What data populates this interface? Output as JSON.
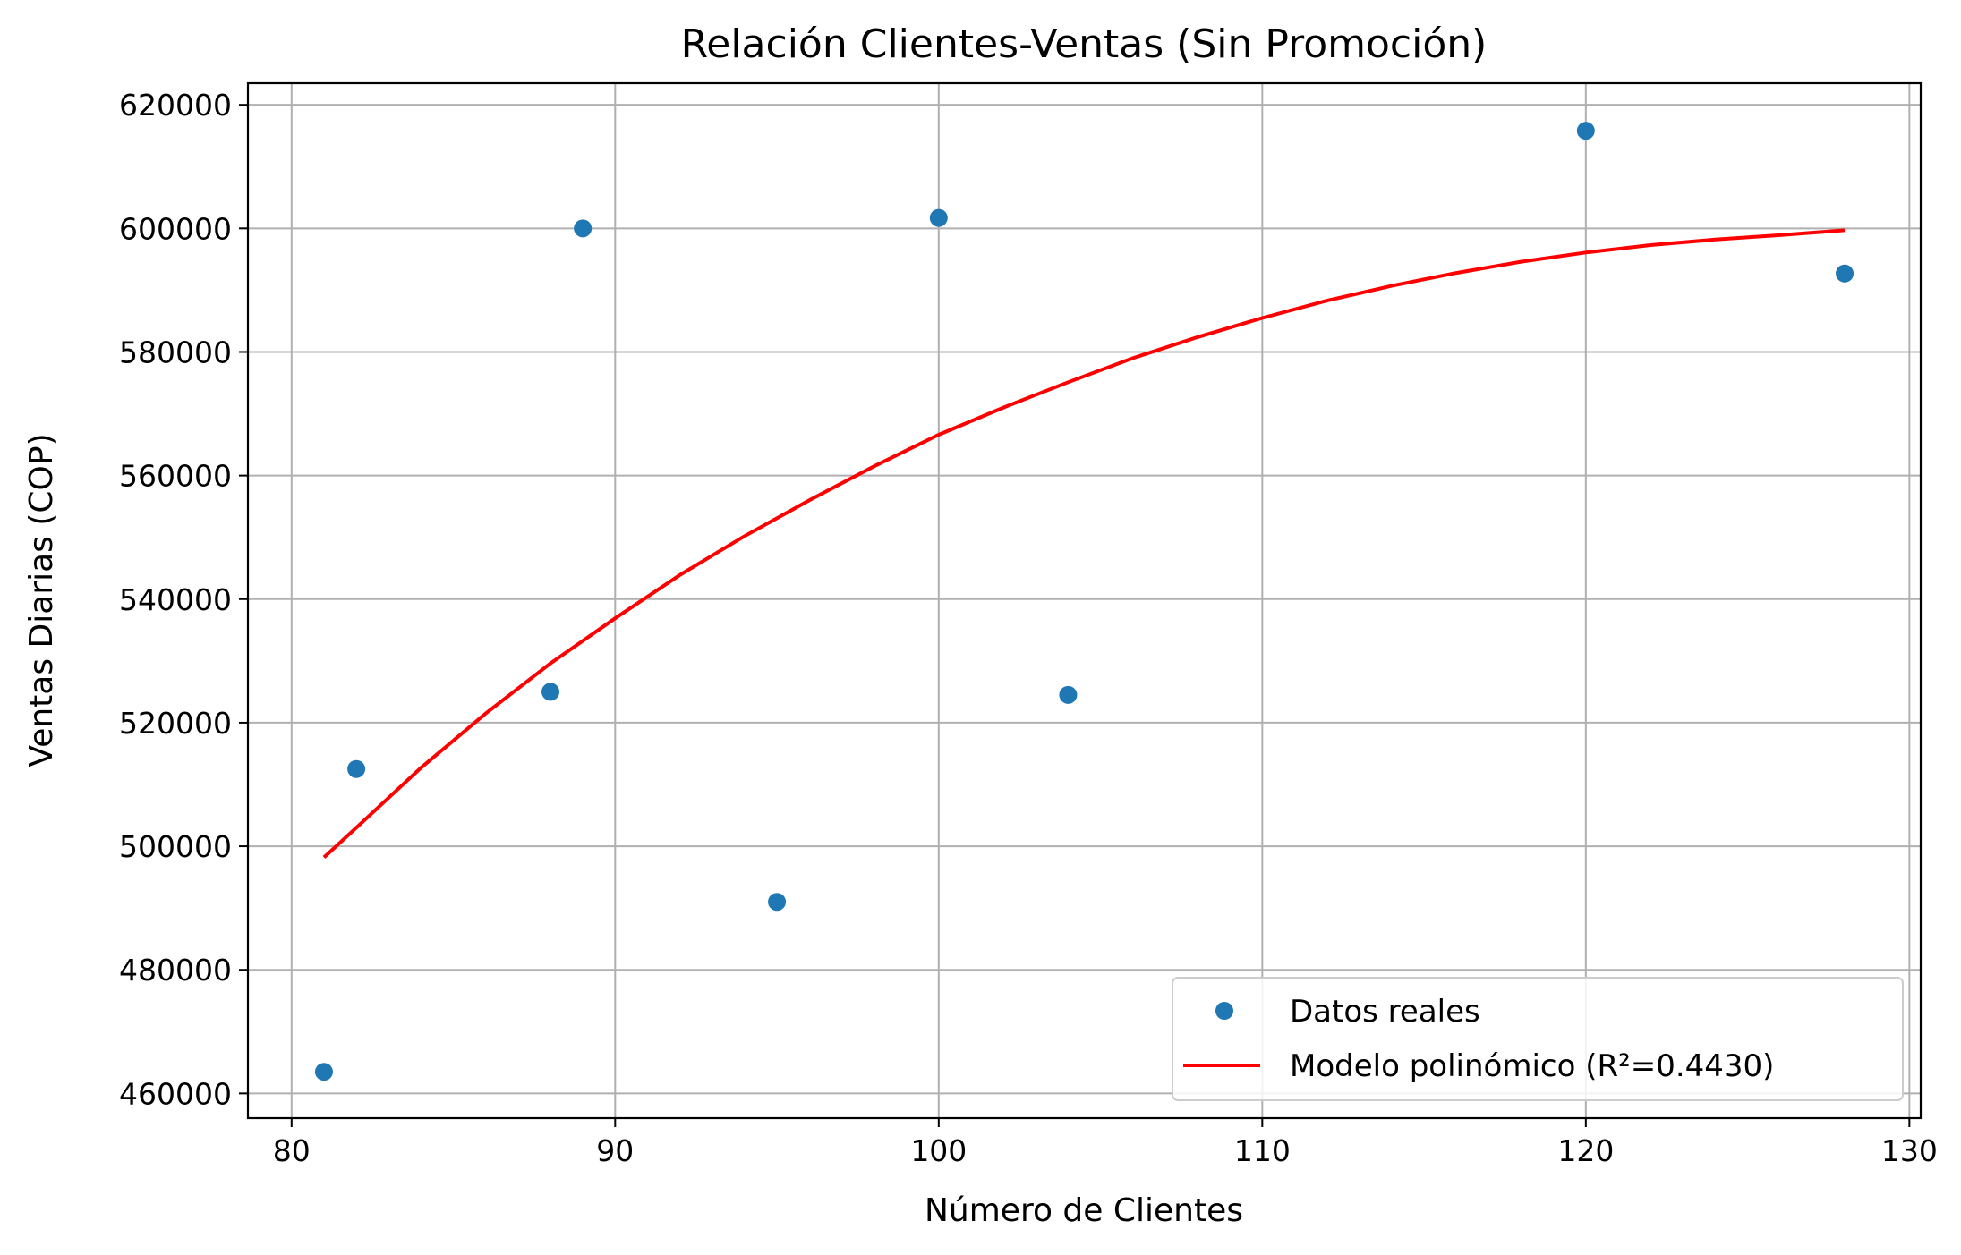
{
  "chart_data": {
    "type": "scatter",
    "title": "Relación Clientes-Ventas (Sin Promoción)",
    "xlabel": "Número de Clientes",
    "ylabel": "Ventas Diarias (COP)",
    "xlim": [
      78.65,
      130.35
    ],
    "ylim": [
      456000,
      623500
    ],
    "xticks": [
      80,
      90,
      100,
      110,
      120,
      130
    ],
    "xtick_labels": [
      "80",
      "90",
      "100",
      "110",
      "120",
      "130"
    ],
    "yticks": [
      460000,
      480000,
      500000,
      520000,
      540000,
      560000,
      580000,
      600000,
      620000
    ],
    "ytick_labels": [
      "460000",
      "480000",
      "500000",
      "520000",
      "540000",
      "560000",
      "580000",
      "600000",
      "620000"
    ],
    "grid": true,
    "legend_position": "lower right",
    "series": [
      {
        "name": "Datos reales",
        "kind": "scatter",
        "color": "#1f77b4",
        "x": [
          81,
          82,
          88,
          89,
          95,
          100,
          104,
          120,
          128
        ],
        "y": [
          463500,
          512500,
          525000,
          600000,
          491000,
          601700,
          524500,
          615800,
          592700
        ]
      },
      {
        "name": "Modelo polinómico (R²=0.4430)",
        "kind": "line",
        "color": "#ff0000",
        "x": [
          81,
          82,
          84,
          86,
          88,
          90,
          92,
          94,
          96,
          98,
          100,
          102,
          104,
          106,
          108,
          110,
          112,
          114,
          116,
          118,
          120,
          122,
          124,
          126,
          128
        ],
        "y": [
          498200,
          503000,
          512700,
          521500,
          529600,
          536900,
          543900,
          550200,
          556000,
          561500,
          566600,
          571000,
          575100,
          579000,
          582400,
          585500,
          588300,
          590700,
          592800,
          594600,
          596100,
          597300,
          598200,
          598900,
          599700
        ]
      }
    ]
  }
}
